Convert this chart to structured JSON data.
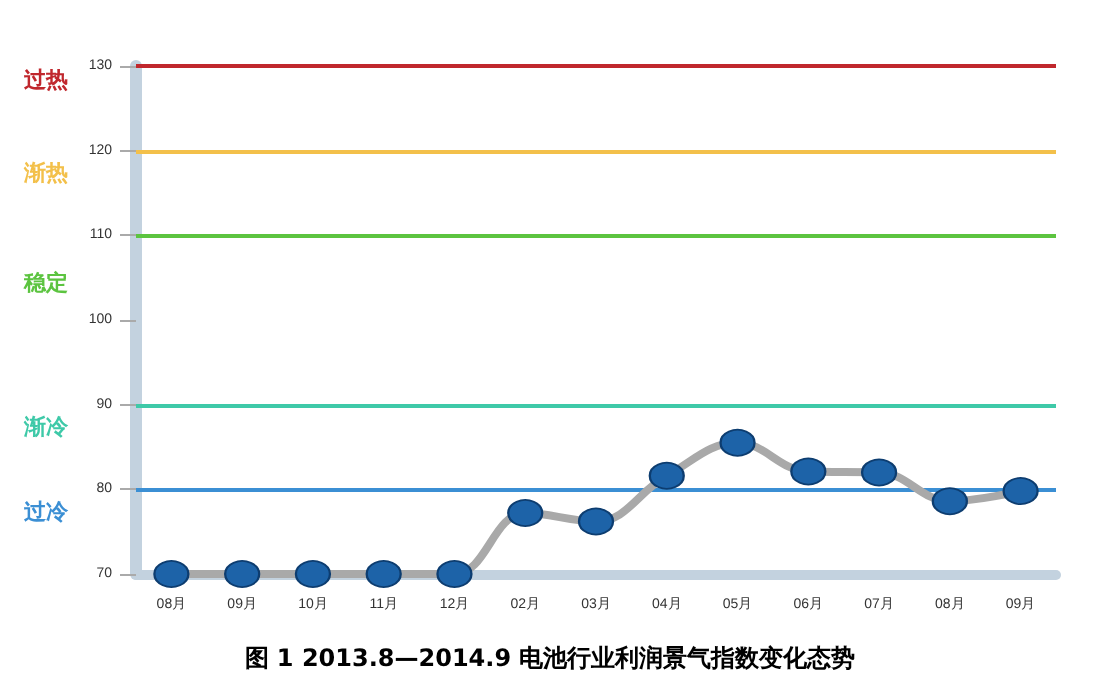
{
  "chart_data": {
    "type": "line",
    "title": "图 1 2013.8—2014.9 电池行业利润景气指数变化态势",
    "categories": [
      "08月",
      "09月",
      "10月",
      "11月",
      "12月",
      "02月",
      "03月",
      "04月",
      "05月",
      "06月",
      "07月",
      "08月",
      "09月"
    ],
    "series": [
      {
        "color": "#1d63a8",
        "values": [
          70,
          70,
          70,
          70,
          70,
          77.2,
          76.2,
          81.6,
          85.5,
          82.1,
          82,
          78.6,
          79.8
        ]
      }
    ],
    "ylim": [
      70,
      130
    ],
    "yticks": [
      70,
      80,
      90,
      100,
      110,
      120,
      130
    ],
    "grid": false,
    "marker": "circle",
    "line_style": "solid",
    "ref_lines": [
      {
        "axis": "y",
        "value": 130,
        "color": "#c0272d"
      },
      {
        "axis": "y",
        "value": 120,
        "color": "#f3c04a"
      },
      {
        "axis": "y",
        "value": 110,
        "color": "#5cc440"
      },
      {
        "axis": "y",
        "value": 90,
        "color": "#3ec9a8"
      },
      {
        "axis": "y",
        "value": 80,
        "color": "#3b8fd4"
      }
    ],
    "annotations": [
      "过热",
      "渐热",
      "稳定",
      "渐冷",
      "过冷"
    ]
  }
}
